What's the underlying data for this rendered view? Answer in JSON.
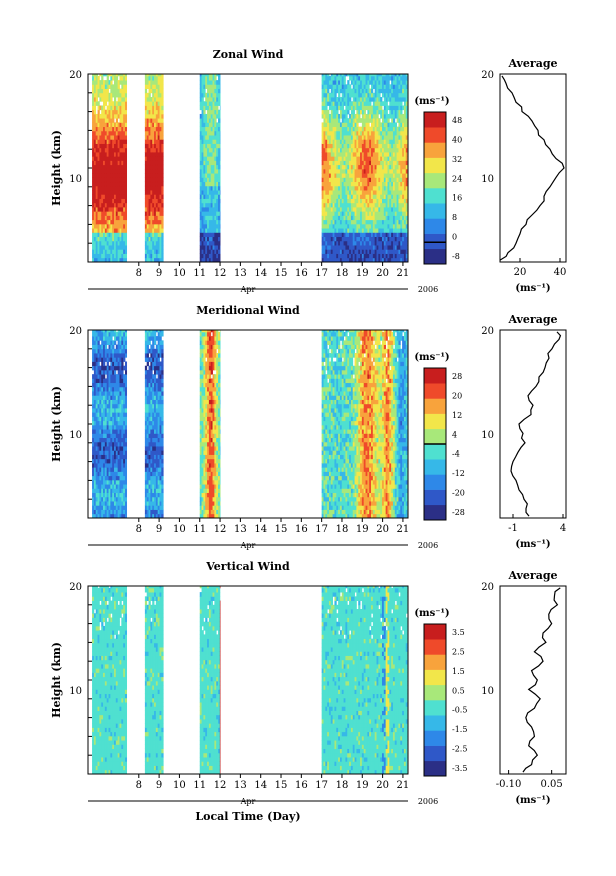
{
  "chart_data": [
    {
      "type": "heatmap",
      "title": "Zonal Wind",
      "ylabel": "Height (km)",
      "xlabel": "Apr",
      "year": "2006",
      "ylim": [
        0,
        20
      ],
      "yticks": [
        10,
        20
      ],
      "xlim": [
        5.5,
        21.25
      ],
      "xticks": [
        8,
        9,
        10,
        11,
        12,
        13,
        14,
        15,
        16,
        17,
        18,
        19,
        20,
        21
      ],
      "xticklabels": [
        "8",
        "9",
        "10",
        "11",
        "12",
        "13",
        "14",
        "15",
        "16",
        "17",
        "18",
        "19",
        "20",
        "21"
      ],
      "data_segments": [
        [
          5.7,
          7.4
        ],
        [
          8.3,
          9.2
        ],
        [
          11.0,
          12.0
        ]
      ],
      "colorbar": {
        "unit": "(ms⁻¹)",
        "ticks": [
          "48",
          "40",
          "32",
          "24",
          "16",
          "8",
          "0",
          "-8"
        ],
        "range": [
          -8,
          48
        ],
        "zero_line": 0
      },
      "average": {
        "title": "Average",
        "xticks": [
          20,
          40
        ],
        "xlim": [
          10,
          43
        ],
        "xunit": "(ms⁻¹)",
        "height": [
          0.2,
          1,
          2,
          3,
          4,
          5,
          6,
          7,
          8,
          9,
          10,
          11,
          12,
          13,
          14,
          15,
          16,
          17,
          18,
          19,
          19.8
        ],
        "value": [
          10,
          14,
          18,
          20,
          23,
          26,
          30,
          32,
          35,
          38,
          42,
          38,
          35,
          32,
          29,
          26,
          21,
          18,
          16,
          13,
          11
        ]
      },
      "pattern": {
        "max": 48,
        "min": -8
      }
    },
    {
      "type": "heatmap",
      "title": "Meridional Wind",
      "ylabel": "Height (km)",
      "xlabel": "Apr",
      "year": "2006",
      "ylim": [
        0,
        20
      ],
      "yticks": [
        10,
        20
      ],
      "xlim": [
        5.5,
        21.25
      ],
      "xticks": [
        8,
        9,
        10,
        11,
        12,
        13,
        14,
        15,
        16,
        17,
        18,
        19,
        20,
        21
      ],
      "xticklabels": [
        "8",
        "9",
        "10",
        "11",
        "12",
        "13",
        "14",
        "15",
        "16",
        "17",
        "18",
        "19",
        "20",
        "21"
      ],
      "data_segments": [
        [
          5.7,
          7.4
        ],
        [
          8.3,
          9.2
        ],
        [
          11.0,
          12.0
        ]
      ],
      "colorbar": {
        "unit": "(ms⁻¹)",
        "ticks": [
          "28",
          "20",
          "12",
          "4",
          "-4",
          "-12",
          "-20",
          "-28"
        ],
        "range": [
          -28,
          28
        ],
        "zero_line": 0
      },
      "average": {
        "title": "Average",
        "xticks": [
          -1,
          4
        ],
        "xlim": [
          -2.3,
          4.3
        ],
        "xunit": "(ms⁻¹)",
        "height": [
          0.2,
          1,
          2,
          3,
          4,
          5,
          6,
          7,
          8,
          9,
          10,
          11,
          12,
          13,
          14,
          15,
          16,
          17,
          18,
          19,
          19.8
        ],
        "value": [
          0.6,
          0.3,
          0.1,
          -0.4,
          -0.7,
          -1.2,
          -1.0,
          -0.5,
          0.2,
          0.0,
          -0.4,
          0.8,
          1.0,
          0.5,
          1.3,
          1.6,
          2.2,
          2.6,
          2.9,
          3.6,
          3.4
        ]
      },
      "pattern": {
        "max": 28,
        "min": -28
      }
    },
    {
      "type": "heatmap",
      "title": "Vertical Wind",
      "ylabel": "Height (km)",
      "xlabel": "Apr",
      "year": "2006",
      "ylim": [
        0,
        20
      ],
      "yticks": [
        10,
        20
      ],
      "xlim": [
        5.5,
        21.25
      ],
      "xticks": [
        8,
        9,
        10,
        11,
        12,
        13,
        14,
        15,
        16,
        17,
        18,
        19,
        20,
        21
      ],
      "xticklabels": [
        "8",
        "9",
        "10",
        "11",
        "12",
        "13",
        "14",
        "15",
        "16",
        "17",
        "18",
        "19",
        "20",
        "21"
      ],
      "data_segments": [
        [
          5.7,
          7.4
        ],
        [
          8.3,
          9.2
        ],
        [
          11.0,
          12.0
        ]
      ],
      "colorbar": {
        "unit": "(ms⁻¹)",
        "ticks": [
          "3.5",
          "2.5",
          "1.5",
          "0.5",
          "-0.5",
          "-1.5",
          "-2.5",
          "-3.5"
        ],
        "range": [
          -3.5,
          3.5
        ],
        "zero_line": null
      },
      "average": {
        "title": "Average",
        "xticks": [
          -0.1,
          0.05
        ],
        "xticklabels": [
          "-0.10",
          "0.05"
        ],
        "xlim": [
          -0.13,
          0.1
        ],
        "xunit": "(ms⁻¹)",
        "height": [
          0.2,
          1,
          2,
          3,
          4,
          5,
          6,
          7,
          8,
          9,
          10,
          11,
          12,
          13,
          14,
          15,
          16,
          17,
          18,
          19,
          19.8
        ],
        "value": [
          -0.05,
          -0.02,
          0.0,
          -0.03,
          -0.01,
          -0.02,
          -0.04,
          -0.01,
          0.01,
          -0.03,
          0.0,
          -0.02,
          0.02,
          -0.01,
          0.03,
          0.02,
          0.05,
          0.04,
          0.07,
          0.06,
          0.08
        ]
      },
      "pattern": {
        "max": 3.5,
        "min": -3.5
      }
    }
  ],
  "figure": {
    "xaxis_title": "Local Time (Day)",
    "colormap": [
      "#2b2f86",
      "#2f58c8",
      "#2e88e8",
      "#36b8e8",
      "#4fe0d0",
      "#a8e87a",
      "#f2e64a",
      "#f8a33c",
      "#ef4a2a",
      "#c81e1e"
    ]
  }
}
